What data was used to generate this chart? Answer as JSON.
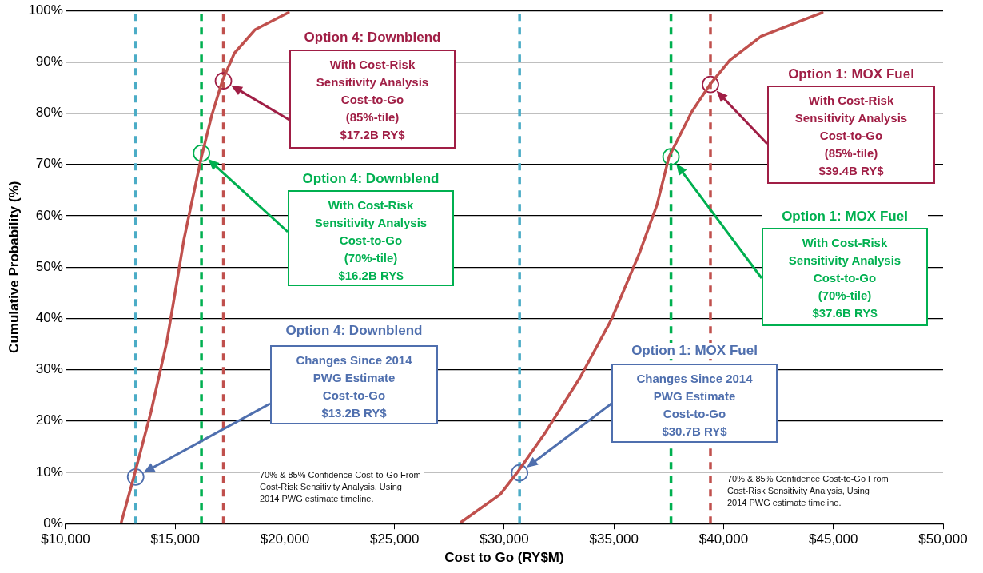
{
  "chart_data": {
    "type": "line",
    "xlabel": "Cost to Go (RY$M)",
    "ylabel": "Cumulative Probability (%)",
    "xlim": [
      10000,
      50000
    ],
    "xticks": [
      {
        "value": 10000,
        "label": "$10,000"
      },
      {
        "value": 15000,
        "label": "$15,000"
      },
      {
        "value": 20000,
        "label": "$20,000"
      },
      {
        "value": 25000,
        "label": "$25,000"
      },
      {
        "value": 30000,
        "label": "$30,000"
      },
      {
        "value": 35000,
        "label": "$35,000"
      },
      {
        "value": 40000,
        "label": "$40,000"
      },
      {
        "value": 45000,
        "label": "$45,000"
      },
      {
        "value": 50000,
        "label": "$50,000"
      }
    ],
    "ylim": [
      0,
      100
    ],
    "yticks": [
      {
        "value": 0,
        "label": "0%"
      },
      {
        "value": 10,
        "label": "10%"
      },
      {
        "value": 20,
        "label": "20%"
      },
      {
        "value": 30,
        "label": "30%"
      },
      {
        "value": 40,
        "label": "40%"
      },
      {
        "value": 50,
        "label": "50%"
      },
      {
        "value": 60,
        "label": "60%"
      },
      {
        "value": 70,
        "label": "70%"
      },
      {
        "value": 80,
        "label": "80%"
      },
      {
        "value": 90,
        "label": "90%"
      },
      {
        "value": 100,
        "label": "100%"
      }
    ],
    "grid": "y",
    "series": [
      {
        "color": "#c0504d",
        "marker": "none",
        "line_style": "solid",
        "x": [
          12550,
          13110,
          13900,
          14610,
          15010,
          15400,
          15800,
          16200,
          16670,
          17150,
          17700,
          18650,
          20160
        ],
        "values": [
          0.3,
          9,
          21.8,
          35.2,
          45.3,
          55.4,
          63.5,
          71.5,
          79.6,
          86.3,
          91.7,
          96.3,
          99.6
        ]
      },
      {
        "color": "#c0504d",
        "marker": "none",
        "line_style": "solid",
        "x": [
          28040,
          29820,
          30580,
          31880,
          33460,
          34900,
          36160,
          36960,
          37510,
          38540,
          39380,
          40280,
          41710,
          44490
        ],
        "values": [
          0.3,
          5.7,
          9.9,
          17.8,
          28.5,
          39.9,
          52.7,
          62.1,
          71.5,
          80.2,
          85.6,
          90.3,
          95,
          99.6
        ]
      },
      {
        "type": "scatter",
        "color": "#a01e45",
        "marker": "circle",
        "x": [
          17200,
          39400
        ],
        "values": [
          86.3,
          85.6
        ]
      },
      {
        "type": "scatter",
        "color": "#00b050",
        "marker": "circle",
        "x": [
          16200,
          37600
        ],
        "values": [
          72.2,
          71.5
        ]
      },
      {
        "type": "scatter",
        "color": "#4f6fae",
        "marker": "circle",
        "x": [
          13200,
          30700
        ],
        "values": [
          9.1,
          9.9
        ]
      }
    ],
    "ref_lines": [
      {
        "axis": "x",
        "value": 13200,
        "color": "#4bacc6",
        "line_style": "dashed"
      },
      {
        "axis": "x",
        "value": 16200,
        "color": "#00b050",
        "line_style": "dashed"
      },
      {
        "axis": "x",
        "value": 17200,
        "color": "#c0504d",
        "line_style": "dashed"
      },
      {
        "axis": "x",
        "value": 30700,
        "color": "#4bacc6",
        "line_style": "dashed"
      },
      {
        "axis": "x",
        "value": 37600,
        "color": "#00b050",
        "line_style": "dashed"
      },
      {
        "axis": "x",
        "value": 39400,
        "color": "#c0504d",
        "line_style": "dashed"
      }
    ],
    "annotations": [
      "Option 4: Downblend\nWith Cost-Risk\nSensitivity Analysis\nCost-to-Go\n(85%-tile)\n$17.2B RY$",
      "Option 4: Downblend\nWith Cost-Risk\nSensitivity Analysis\nCost-to-Go\n(70%-tile)\n$16.2B RY$",
      "Option 4: Downblend\nChanges Since 2014\nPWG Estimate\nCost-to-Go\n$13.2B RY$",
      "Option 1: MOX Fuel\nWith Cost-Risk\nSensitivity Analysis\nCost-to-Go\n(85%-tile)\n$39.4B RY$",
      "Option 1: MOX Fuel\nWith Cost-Risk\nSensitivity Analysis\nCost-to-Go\n(70%-tile)\n$37.6B RY$",
      "Option 1: MOX Fuel\nChanges Since 2014\nPWG Estimate\nCost-to-Go\n$30.7B RY$",
      "70% & 85%  Confidence Cost-to-Go From Cost-Risk Sensitivity Analysis, Using 2014 PWG estimate timeline.",
      "70% & 85% Confidence Cost-to-Go From Cost-Risk Sensitivity Analysis, Using 2014 PWG estimate timeline."
    ]
  }
}
